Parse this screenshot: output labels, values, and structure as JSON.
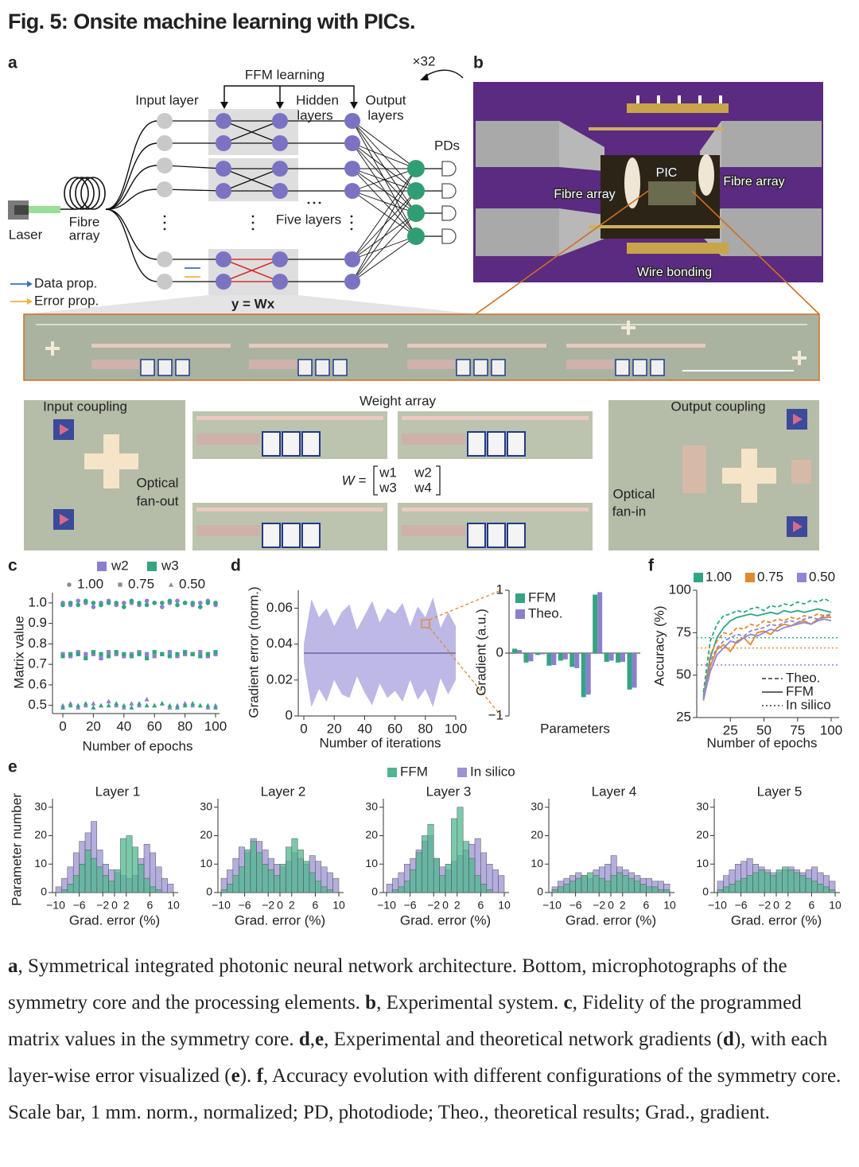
{
  "title": "Fig. 5: Onsite machine learning with PICs.",
  "panel_a": {
    "label": "a",
    "ffm_learning": "FFM learning",
    "repeat": "×32",
    "input_layer": "Input layer",
    "hidden_layers": [
      "Hidden",
      "layers"
    ],
    "output_layers": [
      "Output",
      "layers"
    ],
    "pds": "PDs",
    "five_layers": "Five layers",
    "laser": "Laser",
    "fibre_array": [
      "Fibre",
      "array"
    ],
    "data_prop": "Data prop.",
    "error_prop": "Error prop.",
    "equation": "y = Wx",
    "micrograph": {
      "input_coupling": "Input coupling",
      "weight_array": "Weight array",
      "output_coupling": "Output coupling",
      "fan_out": [
        "Optical",
        "fan-out"
      ],
      "fan_in": [
        "Optical",
        "fan-in"
      ],
      "matrix_lhs": "W =",
      "matrix": [
        [
          "w1",
          "w2"
        ],
        [
          "w3",
          "w4"
        ]
      ]
    }
  },
  "panel_b": {
    "label": "b",
    "pic": "PIC",
    "fibre_left": "Fibre array",
    "fibre_right": "Fibre array",
    "wire_bonding": "Wire bonding"
  },
  "chart_data": [
    {
      "type": "scatter",
      "label": "c",
      "xlabel": "Number of epochs",
      "ylabel": "Matrix value",
      "x": [
        0,
        5,
        10,
        15,
        20,
        25,
        30,
        35,
        40,
        45,
        50,
        55,
        60,
        65,
        70,
        75,
        80,
        85,
        90,
        95,
        100
      ],
      "xlim": [
        0,
        100
      ],
      "xticks": [
        0,
        20,
        40,
        60,
        80,
        100
      ],
      "ylim": [
        0.46,
        1.05
      ],
      "yticks": [
        0.5,
        0.6,
        0.7,
        0.8,
        0.9,
        {
          "value": 1,
          "label": "1.0"
        }
      ],
      "markers": [
        {
          "name": "1.00",
          "shape": "circle"
        },
        {
          "name": "0.75",
          "shape": "square"
        },
        {
          "name": "0.50",
          "shape": "triangle"
        }
      ],
      "marker_color": "#8c8c8c",
      "series": [
        {
          "name": "w2",
          "color": "#8a80cc",
          "values": [
            [
              1.0,
              0.99,
              1.01,
              1.0,
              0.98,
              1.0,
              1.01,
              0.99,
              1.0,
              1.0,
              0.99,
              1.01,
              1.0,
              0.98,
              1.0,
              1.01,
              1.0,
              0.99,
              1.0,
              1.01,
              0.99
            ],
            [
              0.75,
              0.74,
              0.76,
              0.75,
              0.75,
              0.73,
              0.76,
              0.75,
              0.74,
              0.75,
              0.76,
              0.75,
              0.74,
              0.75,
              0.76,
              0.74,
              0.75,
              0.75,
              0.76,
              0.74,
              0.75
            ],
            [
              0.5,
              0.51,
              0.49,
              0.5,
              0.51,
              0.5,
              0.52,
              0.5,
              0.49,
              0.51,
              0.5,
              0.53,
              0.5,
              0.51,
              0.49,
              0.5,
              0.51,
              0.5,
              0.5,
              0.49,
              0.5
            ]
          ]
        },
        {
          "name": "w3",
          "color": "#35a384",
          "values": [
            [
              0.99,
              1.0,
              0.99,
              1.01,
              1.0,
              0.99,
              1.0,
              1.0,
              0.98,
              1.01,
              1.0,
              0.99,
              1.0,
              1.0,
              1.01,
              0.99,
              1.0,
              1.0,
              0.98,
              1.0,
              1.0
            ],
            [
              0.74,
              0.75,
              0.75,
              0.73,
              0.76,
              0.75,
              0.74,
              0.76,
              0.75,
              0.74,
              0.75,
              0.73,
              0.76,
              0.75,
              0.74,
              0.75,
              0.76,
              0.75,
              0.74,
              0.75,
              0.76
            ],
            [
              0.49,
              0.5,
              0.5,
              0.51,
              0.49,
              0.5,
              0.5,
              0.51,
              0.5,
              0.49,
              0.51,
              0.5,
              0.5,
              0.51,
              0.5,
              0.49,
              0.5,
              0.51,
              0.5,
              0.5,
              0.49
            ]
          ]
        }
      ]
    },
    {
      "type": "band",
      "label": "d",
      "xlabel": "Number of iterations",
      "ylabel": "Gradient error (norm.)",
      "x": [
        0,
        5,
        10,
        15,
        20,
        25,
        30,
        35,
        40,
        45,
        50,
        55,
        60,
        65,
        70,
        75,
        80,
        85,
        90,
        95,
        100
      ],
      "upper": [
        0.04,
        0.065,
        0.055,
        0.06,
        0.05,
        0.058,
        0.062,
        0.048,
        0.056,
        0.064,
        0.052,
        0.06,
        0.057,
        0.063,
        0.05,
        0.061,
        0.055,
        0.066,
        0.049,
        0.058,
        0.05
      ],
      "lower": [
        0.03,
        0.005,
        0.015,
        0.008,
        0.02,
        0.012,
        0.01,
        0.022,
        0.013,
        0.006,
        0.018,
        0.01,
        0.014,
        0.008,
        0.02,
        0.009,
        0.015,
        0.005,
        0.021,
        0.012,
        0.02
      ],
      "mean": 0.035,
      "color": "#b1abe0",
      "line_color": "#6b64b0",
      "xlim": [
        0,
        100
      ],
      "xticks": [
        0,
        20,
        40,
        60,
        80,
        100
      ],
      "ylim": [
        0,
        0.07
      ],
      "yticks": [
        0,
        0.02,
        0.04,
        0.06
      ]
    },
    {
      "type": "bar",
      "xlabel": "Parameters",
      "ylabel": "Gradient (a.u.)",
      "ylim": [
        -1,
        1
      ],
      "yticks": [
        {
          "value": -1,
          "label": "−1"
        },
        0,
        1
      ],
      "series": [
        {
          "name": "FFM",
          "color": "#35a384",
          "values": [
            0.07,
            -0.15,
            -0.03,
            -0.2,
            -0.12,
            -0.22,
            -0.7,
            0.93,
            -0.14,
            -0.15,
            -0.58
          ]
        },
        {
          "name": "Theo.",
          "color": "#8a80cc",
          "values": [
            0.05,
            -0.13,
            -0.02,
            -0.19,
            -0.1,
            -0.24,
            -0.66,
            0.97,
            -0.12,
            -0.14,
            -0.55
          ]
        }
      ]
    },
    {
      "type": "line",
      "label": "f",
      "xlabel": "Number of epochs",
      "ylabel": "Accuracy (%)",
      "x": [
        5,
        10,
        15,
        20,
        25,
        30,
        35,
        40,
        45,
        50,
        55,
        60,
        65,
        70,
        75,
        80,
        85,
        90,
        95,
        100
      ],
      "xlim": [
        0,
        100
      ],
      "xticks": [
        25,
        50,
        75,
        100
      ],
      "ylim": [
        25,
        100
      ],
      "yticks": [
        25,
        50,
        75,
        100
      ],
      "styles": [
        "Theo.",
        "FFM",
        "In silico"
      ],
      "series": [
        {
          "name": "1.00",
          "color": "#2fa585",
          "theo": [
            40,
            70,
            80,
            85,
            86,
            88,
            87,
            89,
            90,
            88,
            91,
            90,
            92,
            91,
            93,
            92,
            94,
            93,
            95,
            93
          ],
          "ffm": [
            38,
            60,
            72,
            78,
            82,
            84,
            85,
            86,
            85,
            86,
            87,
            86,
            88,
            87,
            88,
            87,
            88,
            89,
            88,
            87
          ],
          "in_silico": 72
        },
        {
          "name": "0.75",
          "color": "#e08a2e",
          "theo": [
            36,
            62,
            70,
            75,
            74,
            78,
            77,
            80,
            79,
            82,
            81,
            83,
            82,
            84,
            83,
            85,
            84,
            86,
            85,
            86
          ],
          "ffm": [
            35,
            55,
            65,
            68,
            64,
            70,
            72,
            68,
            75,
            76,
            74,
            78,
            80,
            79,
            81,
            82,
            80,
            83,
            84,
            84
          ],
          "in_silico": 66
        },
        {
          "name": "0.50",
          "color": "#8f86d4",
          "theo": [
            37,
            58,
            66,
            70,
            72,
            74,
            73,
            76,
            77,
            78,
            80,
            79,
            81,
            82,
            81,
            83,
            84,
            83,
            85,
            85
          ],
          "ffm": [
            36,
            52,
            62,
            66,
            70,
            69,
            72,
            74,
            73,
            75,
            77,
            76,
            78,
            79,
            80,
            81,
            80,
            82,
            83,
            82
          ],
          "in_silico": 56
        }
      ]
    },
    {
      "type": "histogram",
      "label": "e",
      "ylabel": "Parameter number",
      "bins": [
        -10,
        -9,
        -8,
        -7,
        -6,
        -5,
        -4,
        -3,
        -2,
        -1,
        0,
        1,
        2,
        3,
        4,
        5,
        6,
        7,
        8,
        9,
        10
      ],
      "xlim": [
        -10,
        10
      ],
      "xticks": [
        {
          "value": -10,
          "label": "−10"
        },
        {
          "value": -6,
          "label": "−6"
        },
        {
          "value": -2,
          "label": "−2"
        },
        0,
        2,
        6,
        10
      ],
      "ylim": [
        0,
        33
      ],
      "yticks": [
        0,
        10,
        20,
        30
      ],
      "series": [
        {
          "name": "FFM",
          "color": "#4fb78f"
        },
        {
          "name": "In silico",
          "color": "#9b93d3"
        }
      ],
      "panels": [
        {
          "title": "Layer 1",
          "xlabel": "Grad. error (%)",
          "counts": [
            [
              0,
              1,
              3,
              6,
              10,
              15,
              12,
              9,
              6,
              4,
              8,
              19,
              20,
              16,
              10,
              5,
              2,
              1,
              0,
              0
            ],
            [
              2,
              5,
              9,
              14,
              18,
              21,
              25,
              15,
              10,
              8,
              7,
              6,
              5,
              6,
              12,
              17,
              14,
              9,
              5,
              3
            ]
          ]
        },
        {
          "title": "Layer 2",
          "xlabel": "Grad. error (%)",
          "counts": [
            [
              1,
              3,
              6,
              9,
              15,
              18,
              14,
              10,
              8,
              6,
              10,
              16,
              19,
              15,
              11,
              7,
              4,
              2,
              1,
              0
            ],
            [
              5,
              8,
              12,
              16,
              14,
              19,
              18,
              15,
              12,
              10,
              9,
              11,
              14,
              12,
              10,
              13,
              11,
              9,
              7,
              5
            ]
          ]
        },
        {
          "title": "Layer 3",
          "xlabel": "Grad. error (%)",
          "counts": [
            [
              0,
              1,
              2,
              4,
              8,
              14,
              20,
              24,
              12,
              6,
              10,
              26,
              30,
              18,
              12,
              6,
              3,
              1,
              0,
              0
            ],
            [
              3,
              5,
              7,
              10,
              12,
              15,
              18,
              20,
              12,
              9,
              8,
              11,
              13,
              15,
              17,
              19,
              14,
              10,
              8,
              6
            ]
          ]
        },
        {
          "title": "Layer 4",
          "xlabel": "Grad. error (%)",
          "counts": [
            [
              1,
              2,
              3,
              4,
              5,
              6,
              7,
              6,
              5,
              4,
              6,
              7,
              6,
              5,
              4,
              3,
              2,
              2,
              1,
              1
            ],
            [
              2,
              4,
              5,
              6,
              7,
              6,
              5,
              8,
              9,
              10,
              13,
              9,
              8,
              7,
              6,
              5,
              5,
              4,
              4,
              3
            ]
          ]
        },
        {
          "title": "Layer 5",
          "xlabel": "Grad. error (%)",
          "counts": [
            [
              1,
              2,
              3,
              4,
              5,
              6,
              7,
              8,
              7,
              6,
              8,
              9,
              8,
              7,
              6,
              5,
              4,
              3,
              2,
              1
            ],
            [
              4,
              6,
              8,
              10,
              11,
              12,
              10,
              9,
              8,
              7,
              7,
              8,
              9,
              8,
              7,
              8,
              9,
              7,
              6,
              4
            ]
          ]
        }
      ]
    }
  ],
  "caption": [
    [
      "a",
      ", Symmetrical integrated photonic neural network architecture. Bottom, microphotographs of the symmetry core and the processing elements. "
    ],
    [
      "b",
      ", Experimental system. "
    ],
    [
      "c",
      ", Fidelity of the programmed matrix values in the symmetry core. "
    ],
    [
      "d",
      ","
    ],
    [
      "e",
      ", Experimental and theoretical network gradients ("
    ],
    [
      "d",
      "), with each layer-wise error visualized ("
    ],
    [
      "e",
      "). "
    ],
    [
      "f",
      ", Accuracy evolution with different configurations of the symmetry core. Scale bar, 1 mm. norm., normalized; PD, photodiode; Theo., theoretical results; Grad., gradient."
    ]
  ]
}
